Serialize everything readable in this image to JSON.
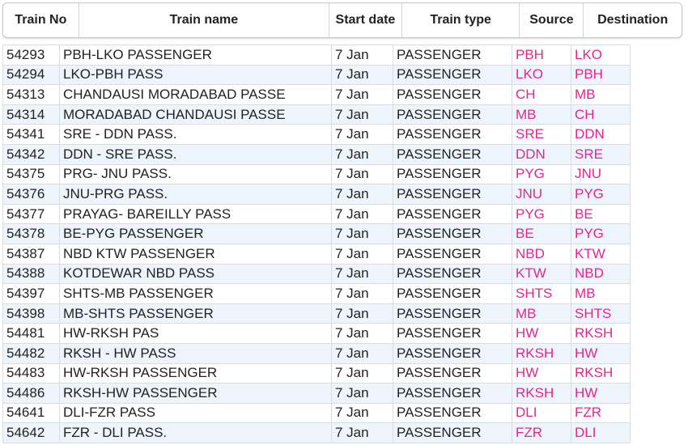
{
  "table": {
    "header": [
      "Train No",
      "Train name",
      "Start date",
      "Train type",
      "Source",
      "Destination"
    ],
    "rows": [
      [
        "54293",
        "PBH-LKO PASSENGER",
        "7 Jan",
        "PASSENGER",
        "PBH",
        "LKO"
      ],
      [
        "54294",
        "LKO-PBH PASS",
        "7 Jan",
        "PASSENGER",
        "LKO",
        "PBH"
      ],
      [
        "54313",
        "CHANDAUSI MORADABAD PASSE",
        "7 Jan",
        "PASSENGER",
        "CH",
        "MB"
      ],
      [
        "54314",
        "MORADABAD CHANDAUSI PASSE",
        "7 Jan",
        "PASSENGER",
        "MB",
        "CH"
      ],
      [
        "54341",
        "SRE - DDN PASS.",
        "7 Jan",
        "PASSENGER",
        "SRE",
        "DDN"
      ],
      [
        "54342",
        "DDN - SRE PASS.",
        "7 Jan",
        "PASSENGER",
        "DDN",
        "SRE"
      ],
      [
        "54375",
        "PRG- JNU PASS.",
        "7 Jan",
        "PASSENGER",
        "PYG",
        "JNU"
      ],
      [
        "54376",
        "JNU-PRG PASS.",
        "7 Jan",
        "PASSENGER",
        "JNU",
        "PYG"
      ],
      [
        "54377",
        "PRAYAG- BAREILLY PASS",
        "7 Jan",
        "PASSENGER",
        "PYG",
        "BE"
      ],
      [
        "54378",
        "BE-PYG PASSENGER",
        "7 Jan",
        "PASSENGER",
        "BE",
        "PYG"
      ],
      [
        "54387",
        "NBD KTW PASSENGER",
        "7 Jan",
        "PASSENGER",
        "NBD",
        "KTW"
      ],
      [
        "54388",
        "KOTDEWAR NBD PASS",
        "7 Jan",
        "PASSENGER",
        "KTW",
        "NBD"
      ],
      [
        "54397",
        "SHTS-MB PASSENGER",
        "7 Jan",
        "PASSENGER",
        "SHTS",
        "MB"
      ],
      [
        "54398",
        "MB-SHTS PASSENGER",
        "7 Jan",
        "PASSENGER",
        "MB",
        "SHTS"
      ],
      [
        "54481",
        "HW-RKSH PAS",
        "7 Jan",
        "PASSENGER",
        "HW",
        "RKSH"
      ],
      [
        "54482",
        "RKSH - HW PASS",
        "7 Jan",
        "PASSENGER",
        "RKSH",
        "HW"
      ],
      [
        "54483",
        "HW-RKSH PASSENGER",
        "7 Jan",
        "PASSENGER",
        "HW",
        "RKSH"
      ],
      [
        "54486",
        "RKSH-HW PASSENGER",
        "7 Jan",
        "PASSENGER",
        "RKSH",
        "HW"
      ],
      [
        "54641",
        "DLI-FZR PASS",
        "7 Jan",
        "PASSENGER",
        "DLI",
        "FZR"
      ],
      [
        "54642",
        "FZR - DLI PASS.",
        "7 Jan",
        "PASSENGER",
        "FZR",
        "DLI"
      ]
    ]
  }
}
